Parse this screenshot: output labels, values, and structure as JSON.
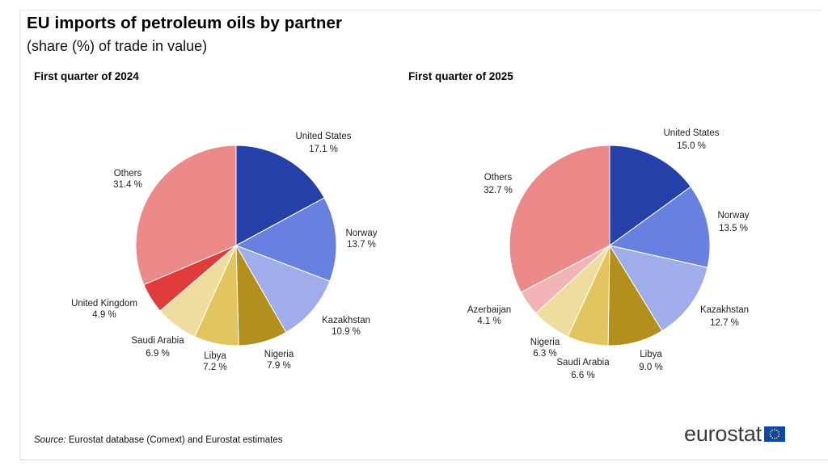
{
  "title": "EU imports of petroleum oils by partner",
  "subtitle": "(share (%) of trade in value)",
  "source": {
    "label": "Source:",
    "text": " Eurostat database (Comext) and Eurostat estimates"
  },
  "logo": {
    "text": "eurostat",
    "icon": "eu-flag-icon"
  },
  "chart_data": [
    {
      "type": "pie",
      "title": "First quarter of 2024",
      "slices": [
        {
          "name": "United States",
          "value": 17.1,
          "label": "17.1 %",
          "color": "#2540a8"
        },
        {
          "name": "Norway",
          "value": 13.7,
          "label": "13.7 %",
          "color": "#6880df"
        },
        {
          "name": "Kazakhstan",
          "value": 10.9,
          "label": "10.9 %",
          "color": "#9fadea"
        },
        {
          "name": "Nigeria",
          "value": 7.9,
          "label": "7.9 %",
          "color": "#b38f1e"
        },
        {
          "name": "Libya",
          "value": 7.2,
          "label": "7.2 %",
          "color": "#e3c560"
        },
        {
          "name": "Saudi Arabia",
          "value": 6.9,
          "label": "6.9 %",
          "color": "#efdc9f"
        },
        {
          "name": "United Kingdom",
          "value": 4.9,
          "label": "4.9 %",
          "color": "#e03c3c"
        },
        {
          "name": "Others",
          "value": 31.4,
          "label": "31.4 %",
          "color": "#ec8a8a"
        }
      ]
    },
    {
      "type": "pie",
      "title": "First quarter of 2025",
      "slices": [
        {
          "name": "United States",
          "value": 15.0,
          "label": "15.0 %",
          "color": "#2540a8"
        },
        {
          "name": "Norway",
          "value": 13.5,
          "label": "13.5 %",
          "color": "#6880df"
        },
        {
          "name": "Kazakhstan",
          "value": 12.7,
          "label": "12.7 %",
          "color": "#9fadea"
        },
        {
          "name": "Libya",
          "value": 9.0,
          "label": "9.0 %",
          "color": "#b38f1e"
        },
        {
          "name": "Saudi Arabia",
          "value": 6.6,
          "label": "6.6 %",
          "color": "#e3c560"
        },
        {
          "name": "Nigeria",
          "value": 6.3,
          "label": "6.3 %",
          "color": "#efdc9f"
        },
        {
          "name": "Azerbaijan",
          "value": 4.1,
          "label": "4.1 %",
          "color": "#f2b4b4"
        },
        {
          "name": "Others",
          "value": 32.7,
          "label": "32.7 %",
          "color": "#ec8a8a"
        }
      ]
    }
  ]
}
